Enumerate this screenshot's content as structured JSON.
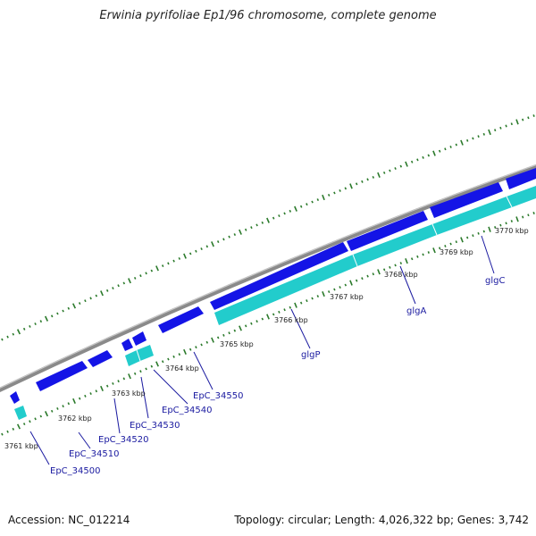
{
  "title": "Erwinia pyrifoliae Ep1/96 chromosome, complete genome",
  "footer": {
    "accession": "Accession: NC_012214",
    "summary": "Topology: circular; Length: 4,026,322 bp; Genes: 3,742"
  },
  "colors": {
    "backbone": "#8a8a8a",
    "forward_cds": "#1414e6",
    "reverse_cds": "#22cccc",
    "tick": "#2b7a2b",
    "gene_label": "#1a1aa0",
    "kbp_label": "#222222"
  },
  "kbp_labels": [
    "3761 kbp",
    "3762 kbp",
    "3763 kbp",
    "3764 kbp",
    "3765 kbp",
    "3766 kbp",
    "3767 kbp",
    "3768 kbp",
    "3769 kbp",
    "3770 kbp"
  ],
  "gene_labels": [
    "EpC_34500",
    "EpC_34510",
    "EpC_34520",
    "EpC_34530",
    "EpC_34540",
    "EpC_34550",
    "glgP",
    "glgA",
    "glgC"
  ]
}
